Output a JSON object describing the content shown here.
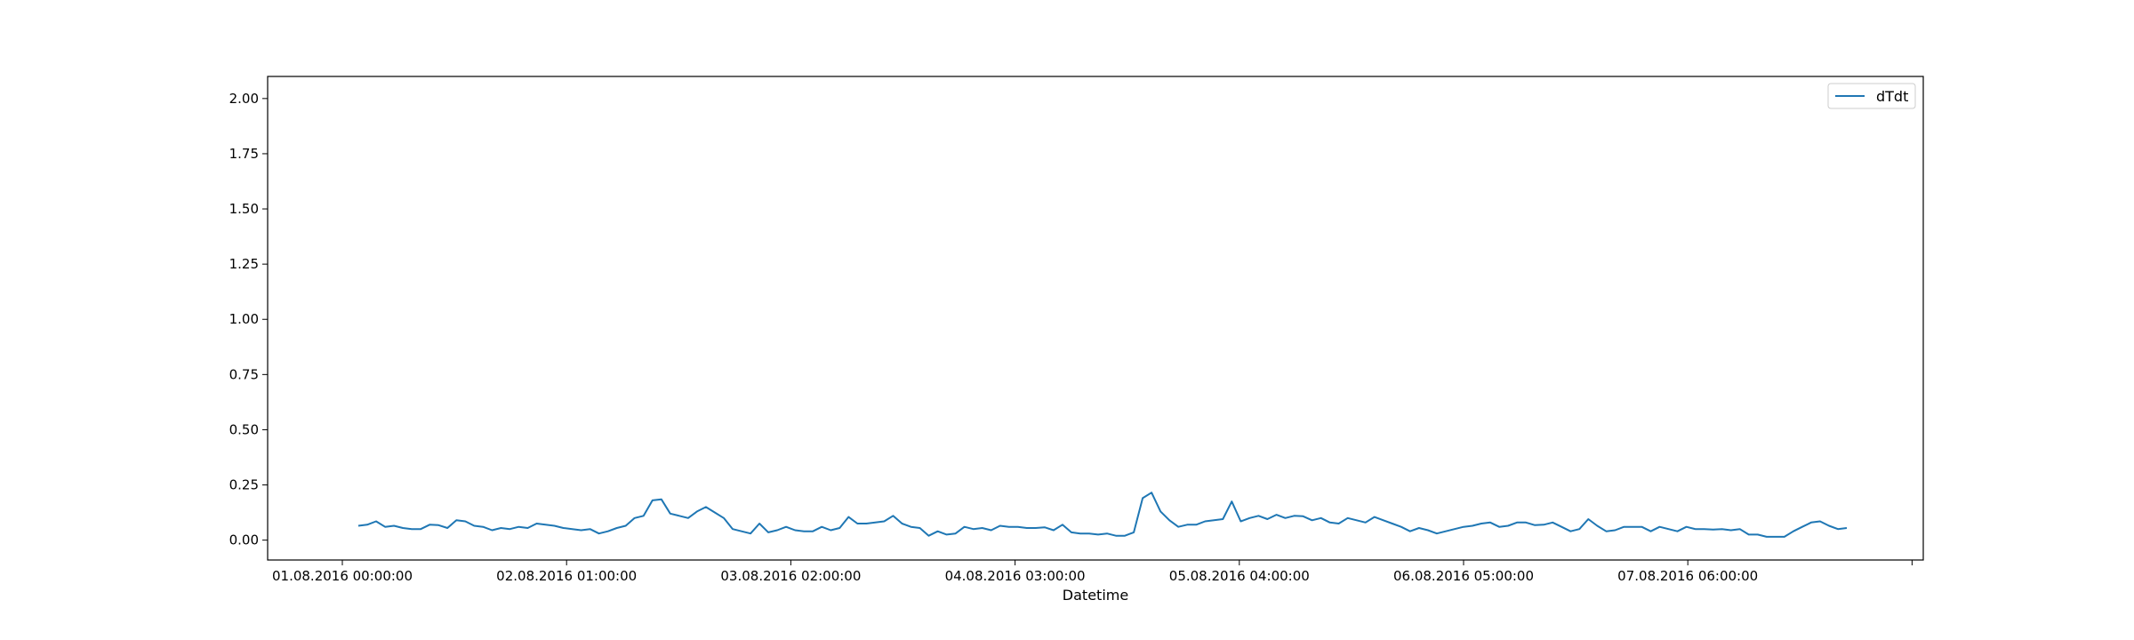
{
  "chart_data": {
    "type": "line",
    "title": "",
    "xlabel": "Datetime",
    "ylabel": "",
    "ylim": [
      -0.09,
      2.1
    ],
    "y_ticks": [
      0.0,
      0.25,
      0.5,
      0.75,
      1.0,
      1.25,
      1.5,
      1.75,
      2.0
    ],
    "y_tick_labels": [
      "0.00",
      "0.25",
      "0.50",
      "0.75",
      "1.00",
      "1.25",
      "1.50",
      "1.75",
      "2.00"
    ],
    "x_tick_labels": [
      "01.08.2016 00:00:00",
      "02.08.2016 01:00:00",
      "03.08.2016 02:00:00",
      "04.08.2016 03:00:00",
      "05.08.2016 04:00:00",
      "06.08.2016 05:00:00",
      "07.08.2016 06:00:00",
      ""
    ],
    "grid": false,
    "legend": "top-right",
    "line_color": "#1f77b4",
    "series": [
      {
        "name": "dTdt",
        "values": [
          0.065,
          0.07,
          0.085,
          0.06,
          0.065,
          0.055,
          0.05,
          0.05,
          0.07,
          0.068,
          0.055,
          0.09,
          0.085,
          0.065,
          0.06,
          0.045,
          0.055,
          0.05,
          0.06,
          0.055,
          0.075,
          0.07,
          0.065,
          0.055,
          0.05,
          0.045,
          0.05,
          0.03,
          0.04,
          0.055,
          0.065,
          0.1,
          0.11,
          0.18,
          0.185,
          0.12,
          0.11,
          0.1,
          0.13,
          0.15,
          0.125,
          0.1,
          0.05,
          0.04,
          0.03,
          0.075,
          0.035,
          0.045,
          0.06,
          0.045,
          0.04,
          0.04,
          0.06,
          0.045,
          0.055,
          0.105,
          0.075,
          0.075,
          0.08,
          0.085,
          0.11,
          0.075,
          0.06,
          0.055,
          0.02,
          0.04,
          0.025,
          0.03,
          0.06,
          0.05,
          0.055,
          0.045,
          0.065,
          0.06,
          0.06,
          0.055,
          0.055,
          0.058,
          0.045,
          0.07,
          0.035,
          0.03,
          0.03,
          0.025,
          0.03,
          0.02,
          0.02,
          0.035,
          0.19,
          0.215,
          0.13,
          0.09,
          0.06,
          0.07,
          0.07,
          0.085,
          0.09,
          0.095,
          0.175,
          0.085,
          0.1,
          0.11,
          0.095,
          0.115,
          0.1,
          0.11,
          0.108,
          0.09,
          0.1,
          0.08,
          0.075,
          0.1,
          0.09,
          0.08,
          0.105,
          0.09,
          0.075,
          0.06,
          0.04,
          0.055,
          0.045,
          0.03,
          0.04,
          0.05,
          0.06,
          0.065,
          0.075,
          0.08,
          0.06,
          0.065,
          0.08,
          0.08,
          0.068,
          0.07,
          0.08,
          0.06,
          0.04,
          0.05,
          0.095,
          0.065,
          0.04,
          0.045,
          0.06,
          0.06,
          0.06,
          0.04,
          0.06,
          0.05,
          0.04,
          0.06,
          0.05,
          0.05,
          0.048,
          0.05,
          0.045,
          0.05,
          0.025,
          0.025,
          0.015,
          0.015,
          0.015,
          0.04,
          0.06,
          0.08,
          0.085,
          0.065,
          0.05,
          0.055
        ]
      }
    ]
  }
}
